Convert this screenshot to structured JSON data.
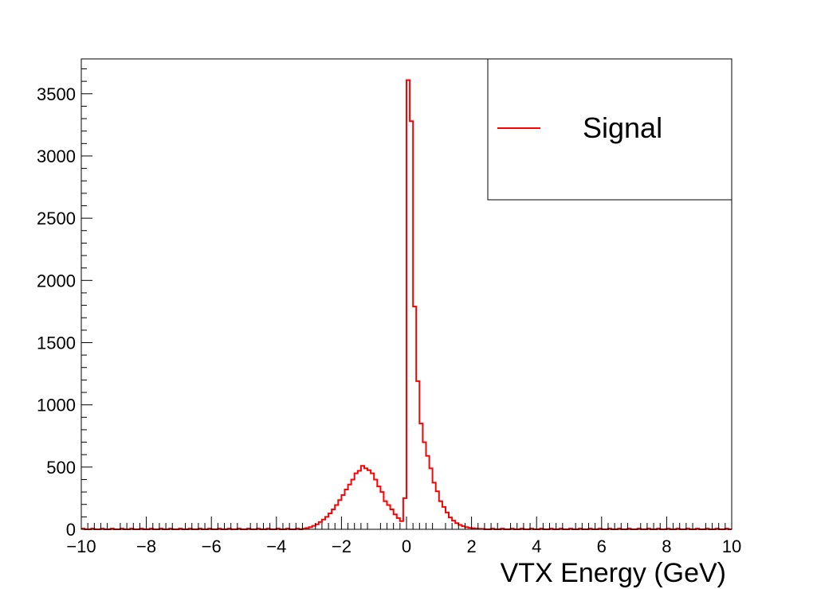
{
  "chart_data": {
    "type": "histogram",
    "title": "",
    "xlabel": "VTX Energy (GeV)",
    "ylabel": "",
    "xlim": [
      -10,
      10
    ],
    "ylim": [
      0,
      3780
    ],
    "x_ticks": [
      -10,
      -8,
      -6,
      -4,
      -2,
      0,
      2,
      4,
      6,
      8,
      10
    ],
    "x_tick_labels": [
      "−10",
      "−8",
      "−6",
      "−4",
      "−2",
      "0",
      "2",
      "4",
      "6",
      "8",
      "10"
    ],
    "y_ticks": [
      0,
      500,
      1000,
      1500,
      2000,
      2500,
      3000,
      3500
    ],
    "y_tick_labels": [
      "0",
      "500",
      "1000",
      "1500",
      "2000",
      "2500",
      "3000",
      "3500"
    ],
    "grid": false,
    "legend_position": "top-right",
    "bin_width": 0.1,
    "series": [
      {
        "name": "Signal",
        "color": "#ff0000",
        "bins": [
          {
            "x": -3.2,
            "y": 5
          },
          {
            "x": -3.1,
            "y": 10
          },
          {
            "x": -3.0,
            "y": 18
          },
          {
            "x": -2.9,
            "y": 28
          },
          {
            "x": -2.8,
            "y": 40
          },
          {
            "x": -2.7,
            "y": 58
          },
          {
            "x": -2.6,
            "y": 78
          },
          {
            "x": -2.5,
            "y": 100
          },
          {
            "x": -2.4,
            "y": 128
          },
          {
            "x": -2.3,
            "y": 160
          },
          {
            "x": -2.2,
            "y": 195
          },
          {
            "x": -2.1,
            "y": 235
          },
          {
            "x": -2.0,
            "y": 275
          },
          {
            "x": -1.9,
            "y": 320
          },
          {
            "x": -1.8,
            "y": 360
          },
          {
            "x": -1.7,
            "y": 400
          },
          {
            "x": -1.6,
            "y": 450
          },
          {
            "x": -1.5,
            "y": 470
          },
          {
            "x": -1.4,
            "y": 510
          },
          {
            "x": -1.3,
            "y": 490
          },
          {
            "x": -1.2,
            "y": 475
          },
          {
            "x": -1.1,
            "y": 450
          },
          {
            "x": -1.0,
            "y": 400
          },
          {
            "x": -0.9,
            "y": 345
          },
          {
            "x": -0.8,
            "y": 300
          },
          {
            "x": -0.7,
            "y": 225
          },
          {
            "x": -0.6,
            "y": 195
          },
          {
            "x": -0.5,
            "y": 160
          },
          {
            "x": -0.4,
            "y": 120
          },
          {
            "x": -0.3,
            "y": 90
          },
          {
            "x": -0.2,
            "y": 65
          },
          {
            "x": -0.1,
            "y": 250
          },
          {
            "x": 0.0,
            "y": 3610
          },
          {
            "x": 0.1,
            "y": 3280
          },
          {
            "x": 0.2,
            "y": 1790
          },
          {
            "x": 0.3,
            "y": 1190
          },
          {
            "x": 0.4,
            "y": 850
          },
          {
            "x": 0.5,
            "y": 700
          },
          {
            "x": 0.6,
            "y": 590
          },
          {
            "x": 0.7,
            "y": 490
          },
          {
            "x": 0.8,
            "y": 375
          },
          {
            "x": 0.9,
            "y": 305
          },
          {
            "x": 1.0,
            "y": 225
          },
          {
            "x": 1.1,
            "y": 180
          },
          {
            "x": 1.2,
            "y": 135
          },
          {
            "x": 1.3,
            "y": 95
          },
          {
            "x": 1.4,
            "y": 70
          },
          {
            "x": 1.5,
            "y": 50
          },
          {
            "x": 1.6,
            "y": 35
          },
          {
            "x": 1.7,
            "y": 25
          },
          {
            "x": 1.8,
            "y": 18
          },
          {
            "x": 1.9,
            "y": 12
          },
          {
            "x": 2.0,
            "y": 9
          },
          {
            "x": 2.1,
            "y": 6
          },
          {
            "x": 2.2,
            "y": 4
          },
          {
            "x": 2.3,
            "y": 3
          }
        ],
        "baseline_fluctuation": 6
      }
    ]
  }
}
